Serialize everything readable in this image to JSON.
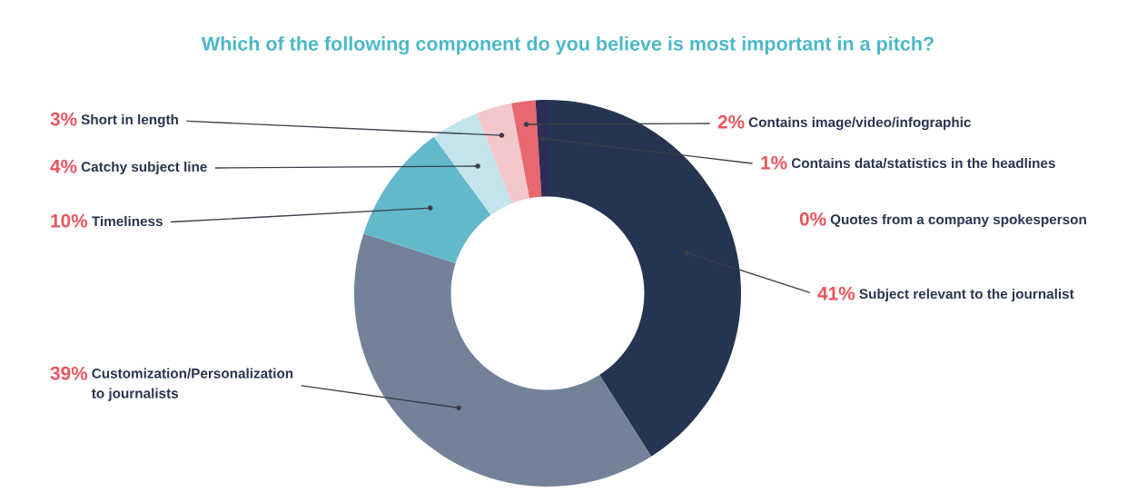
{
  "chart_data": {
    "type": "donut",
    "title": "Which of the following component do you believe is most important in a pitch?",
    "categories": [
      "Subject relevant to the journalist",
      "Customization/Personalization\nto journalists",
      "Timeliness",
      "Catchy subject line",
      "Short in length",
      "Contains image/video/infographic",
      "Contains data/statistics in the headlines",
      "Quotes from a company spokesperson"
    ],
    "values": [
      41,
      39,
      10,
      4,
      3,
      2,
      1,
      0
    ],
    "colors": [
      "#253551",
      "#738299",
      "#63b8cc",
      "#c2e4eb",
      "#f4c7ca",
      "#e8686f",
      "#2e2b57",
      "#1f2a44"
    ],
    "value_labels": [
      "41%",
      "39%",
      "10%",
      "4%",
      "3%",
      "2%",
      "1%",
      "0%"
    ]
  }
}
